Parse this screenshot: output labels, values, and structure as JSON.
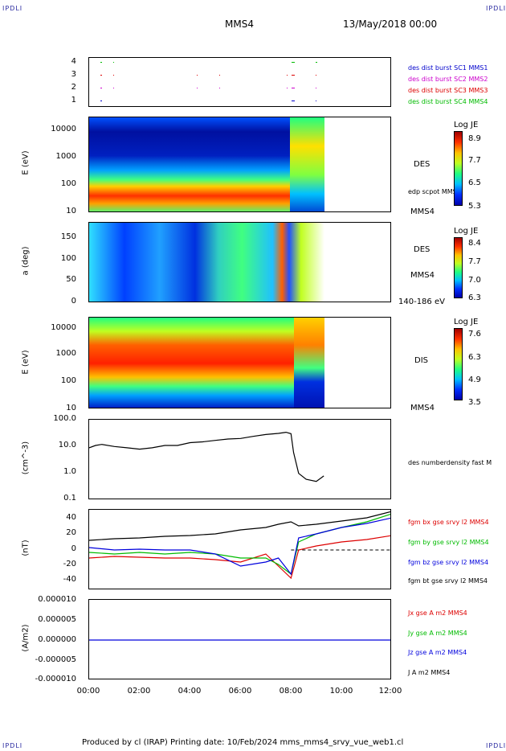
{
  "corner_labels": {
    "top_left": "IPDLI",
    "top_right": "IPDLI",
    "bottom_left": "IPDLI",
    "bottom_right": "IPDLI"
  },
  "header": {
    "spacecraft": "MMS4",
    "date": "13/May/2018 00:00"
  },
  "footer": {
    "text": "Produced by cl (IRAP)   Printing date: 10/Feb/2024   mms_mms4_srvy_vue_web1.cl"
  },
  "colors": {
    "mms1": "#0000cc",
    "mms2": "#cc00cc",
    "mms3": "#dd0000",
    "mms4": "#00bb00",
    "bx": "#dd0000",
    "by": "#00bb00",
    "bz": "#0000dd",
    "bt": "#000000"
  },
  "x_axis": {
    "ticks": [
      "00:00",
      "02:00",
      "04:00",
      "06:00",
      "08:00",
      "10:00",
      "12:00"
    ]
  },
  "panels": {
    "burst": {
      "yticks": [
        "4",
        "3",
        "2",
        "1"
      ],
      "legend": [
        "des dist burst SC1 MMS1",
        "des dist burst SC2 MMS2",
        "des dist burst SC3 MMS3",
        "des dist burst SC4 MMS4"
      ]
    },
    "des_energy": {
      "ylabel": "E (eV)",
      "yticks": [
        "10000",
        "1000",
        "100",
        "10"
      ],
      "right_label": "DES",
      "right_sub": "edp scpot MMS4",
      "bottom_label": "MMS4",
      "cbar_title": "Log JE",
      "cbar_ticks": [
        "8.9",
        "7.7",
        "6.5",
        "5.3"
      ]
    },
    "des_pitch": {
      "ylabel": "a (deg)",
      "yticks": [
        "150",
        "100",
        "50",
        "0"
      ],
      "right_label": "DES",
      "right_sub": "MMS4",
      "bottom_label": "140-186 eV",
      "cbar_title": "Log JE",
      "cbar_ticks": [
        "8.4",
        "7.7",
        "7.0",
        "6.3"
      ]
    },
    "dis_energy": {
      "ylabel": "E (eV)",
      "yticks": [
        "10000",
        "1000",
        "100",
        "10"
      ],
      "right_label": "DIS",
      "bottom_label": "MMS4",
      "cbar_title": "Log JE",
      "cbar_ticks": [
        "7.6",
        "6.3",
        "4.9",
        "3.5"
      ]
    },
    "density": {
      "ylabel": "(cm^-3)",
      "yticks": [
        "100.0",
        "10.0",
        "1.0",
        "0.1"
      ],
      "legend": "des numberdensity fast M"
    },
    "bfield": {
      "ylabel": "(nT)",
      "yticks": [
        "40",
        "20",
        "0",
        "-20",
        "-40"
      ],
      "legend": [
        "fgm bx gse srvy l2 MMS4",
        "fgm by gse srvy l2 MMS4",
        "fgm bz gse srvy l2 MMS4",
        "fgm bt gse srvy l2 MMS4"
      ]
    },
    "current": {
      "ylabel": "(A/m2)",
      "yticks": [
        "0.000010",
        "0.000005",
        "0.000000",
        "-0.000005",
        "-0.000010"
      ],
      "legend": [
        "Jx gse A m2 MMS4",
        "Jy gse A m2 MMS4",
        "Jz gse A m2 MMS4",
        "J A m2 MMS4"
      ]
    }
  },
  "chart_data": [
    {
      "type": "line",
      "title": "",
      "ylabel": "(cm^-3)",
      "yscale": "log",
      "ylim": [
        0.1,
        100
      ],
      "series": [
        {
          "name": "des numberdensity fast M",
          "x_hours": [
            0,
            0.25,
            0.5,
            1,
            1.5,
            2,
            2.5,
            3,
            3.5,
            4,
            4.5,
            5,
            5.5,
            6,
            6.5,
            7,
            7.5,
            7.8,
            8.0,
            8.1,
            8.3,
            8.6,
            9.0,
            9.3
          ],
          "values": [
            9,
            11,
            12,
            10,
            9,
            8,
            9,
            11,
            11,
            14,
            15,
            17,
            19,
            20,
            24,
            28,
            31,
            34,
            30,
            6,
            1.0,
            0.6,
            0.5,
            0.8
          ]
        }
      ]
    },
    {
      "type": "line",
      "title": "",
      "ylabel": "(nT)",
      "ylim": [
        -50,
        50
      ],
      "series": [
        {
          "name": "fgm bx gse srvy l2 MMS4",
          "x_hours": [
            0,
            1,
            2,
            3,
            4,
            5,
            6,
            7,
            7.5,
            8,
            8.3,
            9,
            10,
            11,
            12
          ],
          "values": [
            -10,
            -8,
            -9,
            -10,
            -10,
            -12,
            -15,
            -5,
            -20,
            -35,
            0,
            5,
            10,
            13,
            18
          ]
        },
        {
          "name": "fgm by gse srvy l2 MMS4",
          "x_hours": [
            0,
            1,
            2,
            3,
            4,
            5,
            6,
            7,
            7.5,
            8,
            8.3,
            9,
            10,
            11,
            12
          ],
          "values": [
            -3,
            -5,
            -3,
            -5,
            -3,
            -5,
            -10,
            -10,
            -18,
            -30,
            10,
            20,
            28,
            35,
            45
          ]
        },
        {
          "name": "fgm bz gse srvy l2 MMS4",
          "x_hours": [
            0,
            1,
            2,
            3,
            4,
            5,
            6,
            7,
            7.5,
            8,
            8.3,
            9,
            10,
            11,
            12
          ],
          "values": [
            3,
            0,
            1,
            0,
            0,
            -5,
            -20,
            -15,
            -10,
            -30,
            15,
            20,
            28,
            33,
            40
          ]
        },
        {
          "name": "fgm bt gse srvy l2 MMS4",
          "x_hours": [
            0,
            1,
            2,
            3,
            4,
            5,
            6,
            7,
            7.5,
            8,
            8.3,
            9,
            10,
            11,
            12
          ],
          "values": [
            12,
            14,
            15,
            17,
            18,
            20,
            25,
            28,
            32,
            35,
            30,
            32,
            36,
            40,
            48
          ]
        }
      ]
    },
    {
      "type": "line",
      "title": "",
      "ylabel": "(A/m2)",
      "ylim": [
        -1e-05,
        1e-05
      ],
      "series": [
        {
          "name": "J A m2 MMS4",
          "x_hours": [
            0,
            6,
            8,
            12
          ],
          "values": [
            0,
            0,
            0,
            0
          ]
        }
      ]
    }
  ]
}
